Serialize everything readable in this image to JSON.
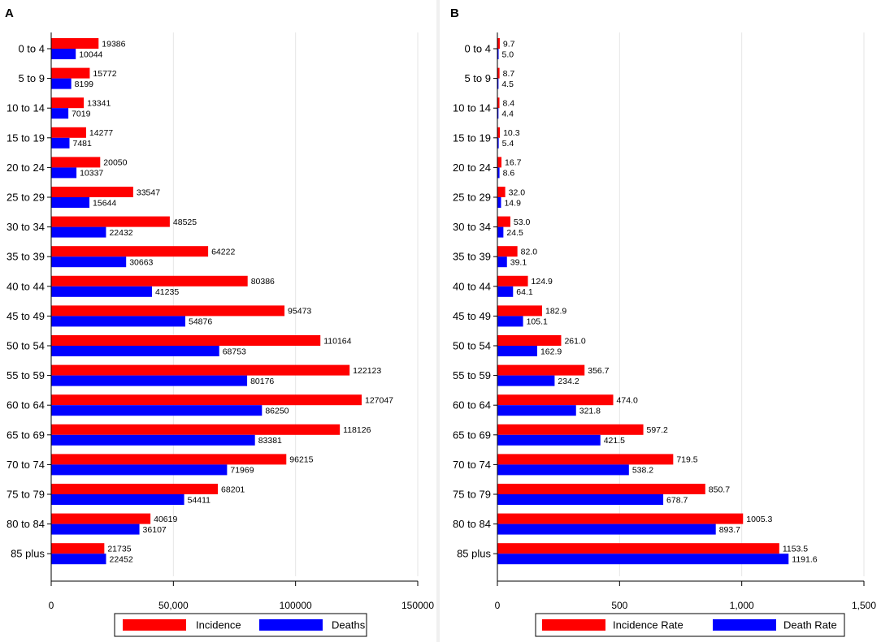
{
  "chart_data": [
    {
      "type": "bar",
      "orientation": "horizontal",
      "panel_label": "A",
      "categories": [
        "0 to 4",
        "5 to 9",
        "10 to 14",
        "15 to 19",
        "20 to 24",
        "25 to 29",
        "30 to 34",
        "35 to 39",
        "40 to 44",
        "45 to 49",
        "50 to 54",
        "55 to 59",
        "60 to 64",
        "65 to 69",
        "70 to 74",
        "75 to 79",
        "80 to 84",
        "85 plus"
      ],
      "series": [
        {
          "name": "Incidence",
          "color": "#ff0000",
          "values": [
            19386,
            15772,
            13341,
            14277,
            20050,
            33547,
            48525,
            64222,
            80386,
            95473,
            110164,
            122123,
            127047,
            118126,
            96215,
            68201,
            40619,
            21735
          ]
        },
        {
          "name": "Deaths",
          "color": "#0000ff",
          "values": [
            10044,
            8199,
            7019,
            7481,
            10337,
            15644,
            22432,
            30663,
            41235,
            54876,
            68753,
            80176,
            86250,
            83381,
            71969,
            54411,
            36107,
            22452
          ]
        }
      ],
      "value_labels": {
        "Incidence": [
          "19386",
          "15772",
          "13341",
          "14277",
          "20050",
          "33547",
          "48525",
          "64222",
          "80386",
          "95473",
          "110164",
          "122123",
          "127047",
          "118126",
          "96215",
          "68201",
          "40619",
          "21735"
        ],
        "Deaths": [
          "10044",
          "8199",
          "7019",
          "7481",
          "10337",
          "15644",
          "22432",
          "30663",
          "41235",
          "54876",
          "68753",
          "80176",
          "86250",
          "83381",
          "71969",
          "54411",
          "36107",
          "22452"
        ]
      },
      "xlim": [
        0,
        150000
      ],
      "xticks": [
        0,
        50000,
        100000,
        150000
      ],
      "xtick_labels": [
        "0",
        "50,000",
        "100000",
        "150000"
      ],
      "grid": true,
      "legend": [
        "Incidence",
        "Deaths"
      ],
      "legend_position": "bottom"
    },
    {
      "type": "bar",
      "orientation": "horizontal",
      "panel_label": "B",
      "categories": [
        "0 to 4",
        "5 to 9",
        "10 to 14",
        "15 to 19",
        "20 to 24",
        "25 to 29",
        "30 to 34",
        "35 to 39",
        "40 to 44",
        "45 to 49",
        "50 to 54",
        "55 to 59",
        "60 to 64",
        "65 to 69",
        "70 to 74",
        "75 to 79",
        "80 to 84",
        "85 plus"
      ],
      "series": [
        {
          "name": "Incidence Rate",
          "color": "#ff0000",
          "values": [
            9.7,
            8.7,
            8.4,
            10.3,
            16.7,
            32.0,
            53.0,
            82.0,
            124.9,
            182.9,
            261.0,
            356.7,
            474.0,
            597.2,
            719.5,
            850.7,
            1005.3,
            1153.5
          ]
        },
        {
          "name": "Death Rate",
          "color": "#0000ff",
          "values": [
            5.0,
            4.5,
            4.4,
            5.4,
            8.6,
            14.9,
            24.5,
            39.1,
            64.1,
            105.1,
            162.9,
            234.2,
            321.8,
            421.5,
            538.2,
            678.7,
            893.7,
            1191.6
          ]
        }
      ],
      "value_labels": {
        "Incidence Rate": [
          "9.7",
          "8.7",
          "8.4",
          "10.3",
          "16.7",
          "32.0",
          "53.0",
          "82.0",
          "124.9",
          "182.9",
          "261.0",
          "356.7",
          "474.0",
          "597.2",
          "719.5",
          "850.7",
          "1005.3",
          "1153.5"
        ],
        "Death Rate": [
          "5.0",
          "4.5",
          "4.4",
          "5.4",
          "8.6",
          "14.9",
          "24.5",
          "39.1",
          "64.1",
          "105.1",
          "162.9",
          "234.2",
          "321.8",
          "421.5",
          "538.2",
          "678.7",
          "893.7",
          "1191.6"
        ]
      },
      "xlim": [
        0,
        1500
      ],
      "xticks": [
        0,
        500,
        1000,
        1500
      ],
      "xtick_labels": [
        "0",
        "500",
        "1,000",
        "1,500"
      ],
      "grid": true,
      "legend": [
        "Incidence Rate",
        "Death Rate"
      ],
      "legend_position": "bottom"
    }
  ]
}
